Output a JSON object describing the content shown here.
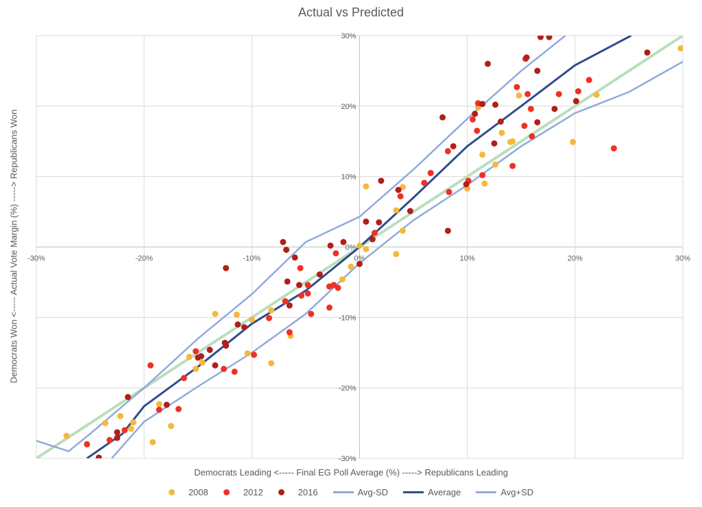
{
  "chart_data": {
    "type": "scatter",
    "title": "Actual vs Predicted",
    "xlabel": "Democrats Leading <----- Final EG Poll Average (%) -----> Republicans Leading",
    "ylabel": "Democrats Won <----- Actual Vote Margin (%) -----> Republicans Won",
    "xlim": [
      -30,
      30
    ],
    "ylim": [
      -30,
      30
    ],
    "x_ticks": [
      "-30%",
      "-20%",
      "-10%",
      "0%",
      "10%",
      "20%",
      "30%"
    ],
    "y_ticks": [
      "30%",
      "20%",
      "10%",
      "0%",
      "-10%",
      "-20%",
      "-30%"
    ],
    "grid": true,
    "legend_position": "bottom",
    "colors": {
      "2008": "#F5B83D",
      "2012": "#EE3124",
      "2016": "#B01F1A",
      "Avg-SD": "#8FAADC",
      "Average": "#2F4B8C",
      "Avg+SD": "#8FAADC",
      "reference": "#B9DEBC"
    },
    "reference_line": {
      "x": [
        -30,
        30
      ],
      "y": [
        -30,
        30
      ]
    },
    "series": [
      {
        "name": "2008",
        "kind": "points",
        "points": [
          [
            29.8,
            28.2
          ],
          [
            22,
            21.6
          ],
          [
            14.8,
            21.5
          ],
          [
            11,
            19.8
          ],
          [
            13.2,
            16.2
          ],
          [
            14,
            14.9
          ],
          [
            14.2,
            15.0
          ],
          [
            19.8,
            14.9
          ],
          [
            11.4,
            13.1
          ],
          [
            12.6,
            11.7
          ],
          [
            11.6,
            9.0
          ],
          [
            10,
            8.3
          ],
          [
            0.6,
            8.6
          ],
          [
            4,
            8.5
          ],
          [
            3.4,
            5.2
          ],
          [
            4,
            2.3
          ],
          [
            0.6,
            -0.3
          ],
          [
            3.4,
            -1.0
          ],
          [
            -0.8,
            -2.8
          ],
          [
            0,
            0.2
          ],
          [
            -1.6,
            -4.6
          ],
          [
            -13.4,
            -9.5
          ],
          [
            -11.4,
            -9.6
          ],
          [
            -10,
            -10.3
          ],
          [
            -8.2,
            -9.0
          ],
          [
            -6.4,
            -12.6
          ],
          [
            -8.2,
            -16.5
          ],
          [
            -10.4,
            -15.1
          ],
          [
            -15.8,
            -15.6
          ],
          [
            -14.6,
            -16.4
          ],
          [
            -15.2,
            -17.3
          ],
          [
            -18.6,
            -22.3
          ],
          [
            -22.2,
            -24.0
          ],
          [
            -23.6,
            -25.0
          ],
          [
            -21,
            -24.9
          ],
          [
            -21.2,
            -25.8
          ],
          [
            -17.5,
            -25.4
          ],
          [
            -19.2,
            -27.7
          ],
          [
            -27.2,
            -26.8
          ]
        ]
      },
      {
        "name": "2012",
        "kind": "points",
        "points": [
          [
            21.3,
            23.7
          ],
          [
            20.3,
            22.1
          ],
          [
            18.5,
            21.7
          ],
          [
            15.9,
            19.6
          ],
          [
            15.6,
            21.7
          ],
          [
            14.6,
            22.7
          ],
          [
            15.3,
            17.2
          ],
          [
            16,
            15.7
          ],
          [
            11,
            20.4
          ],
          [
            10.5,
            18.1
          ],
          [
            10.9,
            16.5
          ],
          [
            8.2,
            13.6
          ],
          [
            14.2,
            11.5
          ],
          [
            23.6,
            14.0
          ],
          [
            11.4,
            10.2
          ],
          [
            10.1,
            9.4
          ],
          [
            8.3,
            7.8
          ],
          [
            6.6,
            10.5
          ],
          [
            6,
            9.1
          ],
          [
            3.8,
            7.2
          ],
          [
            1.4,
            2.0
          ],
          [
            15.4,
            26.7
          ],
          [
            -2.2,
            -0.9
          ],
          [
            -5.5,
            -3.0
          ],
          [
            -4.8,
            -5.4
          ],
          [
            -2.8,
            -5.6
          ],
          [
            -2.4,
            -5.4
          ],
          [
            -2,
            -5.8
          ],
          [
            -5.4,
            -6.9
          ],
          [
            -4.8,
            -6.6
          ],
          [
            -6.9,
            -7.7
          ],
          [
            -4.5,
            -9.5
          ],
          [
            -2.8,
            -8.6
          ],
          [
            -8.4,
            -10.1
          ],
          [
            -6.5,
            -12.1
          ],
          [
            -9.8,
            -15.3
          ],
          [
            -15.2,
            -14.8
          ],
          [
            -16.3,
            -18.6
          ],
          [
            -12.6,
            -17.3
          ],
          [
            -11.6,
            -17.7
          ],
          [
            -19.4,
            -16.8
          ],
          [
            -18.6,
            -23.1
          ],
          [
            -16.8,
            -23
          ],
          [
            -21.8,
            -26
          ],
          [
            -23.2,
            -27.4
          ],
          [
            -25.3,
            -28
          ]
        ]
      },
      {
        "name": "2016",
        "kind": "points",
        "points": [
          [
            16.8,
            29.8
          ],
          [
            17.6,
            29.8
          ],
          [
            15.5,
            26.9
          ],
          [
            11.9,
            26
          ],
          [
            16.5,
            25
          ],
          [
            26.7,
            27.6
          ],
          [
            11.4,
            20.3
          ],
          [
            12.6,
            20.2
          ],
          [
            10.7,
            18.9
          ],
          [
            7.7,
            18.4
          ],
          [
            13.1,
            17.8
          ],
          [
            16.5,
            17.7
          ],
          [
            18.1,
            19.6
          ],
          [
            20.1,
            20.7
          ],
          [
            8.7,
            14.3
          ],
          [
            12.5,
            14.7
          ],
          [
            2,
            9.4
          ],
          [
            3.6,
            8.1
          ],
          [
            4.7,
            5.1
          ],
          [
            0.6,
            3.6
          ],
          [
            1.8,
            3.5
          ],
          [
            1.2,
            1.1
          ],
          [
            9.9,
            8.9
          ],
          [
            8.2,
            2.3
          ],
          [
            0,
            -2.4
          ],
          [
            -7.1,
            0.7
          ],
          [
            -6.8,
            -0.4
          ],
          [
            -6,
            -1.5
          ],
          [
            -12.4,
            -3.0
          ],
          [
            -2.7,
            0.2
          ],
          [
            -1.5,
            0.7
          ],
          [
            -3.7,
            -3.9
          ],
          [
            -6.7,
            -4.9
          ],
          [
            -5.6,
            -5.4
          ],
          [
            -6.5,
            -8.3
          ],
          [
            -11.3,
            -11
          ],
          [
            -10.7,
            -11.4
          ],
          [
            -13.9,
            -14.6
          ],
          [
            -12.5,
            -13.6
          ],
          [
            -12.4,
            -14
          ],
          [
            -15,
            -15.7
          ],
          [
            -14.7,
            -15.5
          ],
          [
            -13.4,
            -16.8
          ],
          [
            -17.9,
            -22.4
          ],
          [
            -22.5,
            -26.3
          ],
          [
            -22.5,
            -27.1
          ],
          [
            -24.2,
            -29.9
          ],
          [
            -21.5,
            -21.3
          ]
        ]
      },
      {
        "name": "Avg-SD",
        "kind": "line",
        "x": [
          -23,
          -20,
          -15,
          -10,
          -5,
          0,
          5,
          10,
          15,
          20,
          25,
          30
        ],
        "y": [
          -30,
          -24.8,
          -19.8,
          -15,
          -9.5,
          -2.3,
          3.8,
          8.8,
          14.3,
          19,
          22,
          26.3
        ]
      },
      {
        "name": "Average",
        "kind": "line",
        "x": [
          -25.3,
          -22,
          -20,
          -15,
          -10,
          -5,
          0,
          5,
          10,
          15,
          20,
          25.2
        ],
        "y": [
          -30,
          -26.5,
          -22.6,
          -17,
          -10.9,
          -6.2,
          0,
          7,
          14.3,
          20,
          25.8,
          30
        ]
      },
      {
        "name": "Avg+SD",
        "kind": "line",
        "x": [
          -30,
          -27,
          -25,
          -20,
          -15,
          -10,
          -5,
          0,
          5,
          10,
          15,
          19.1
        ],
        "y": [
          -27.5,
          -29,
          -26.5,
          -20,
          -13,
          -6.7,
          0.7,
          4.3,
          11,
          18.2,
          25,
          30
        ]
      }
    ]
  }
}
